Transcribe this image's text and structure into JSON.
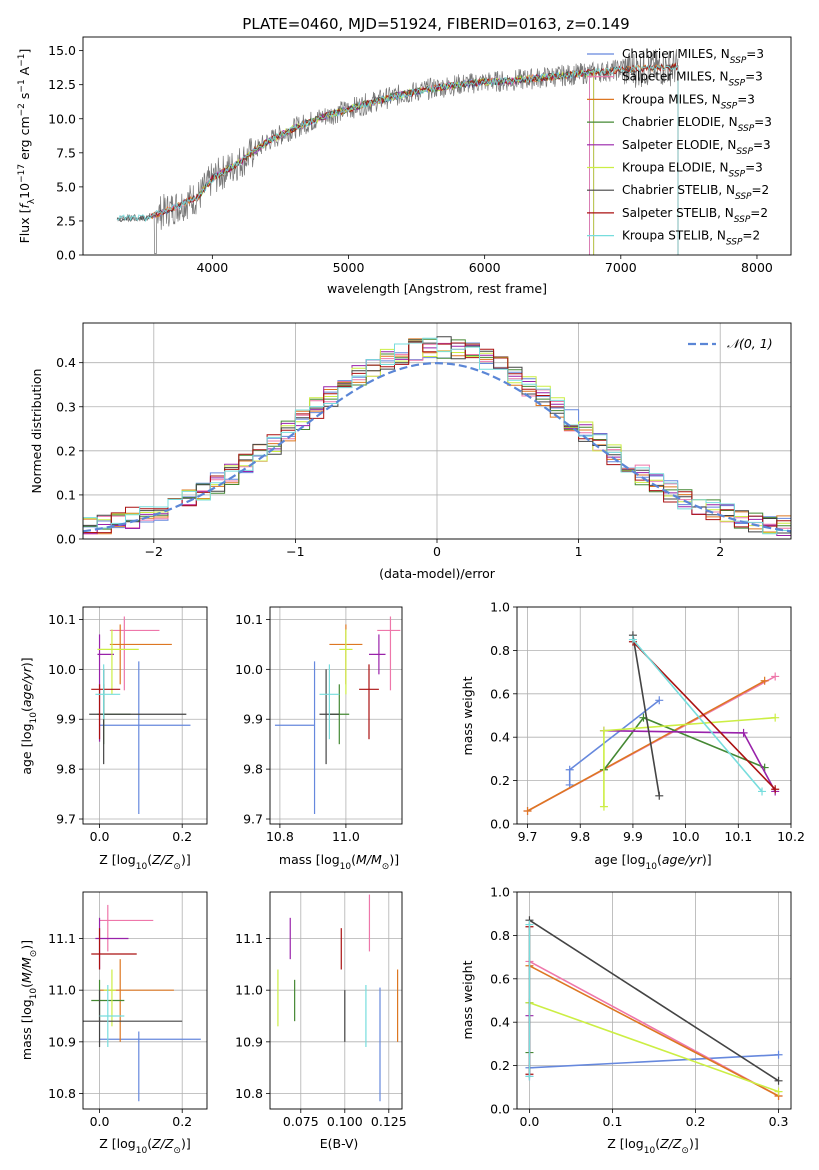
{
  "title": "PLATE=0460, MJD=51924, FIBERID=0163, z=0.149",
  "colors": {
    "Chabrier MILES": "#6688dd",
    "Salpeter MILES": "#ee77aa",
    "Kroupa MILES": "#dd7722",
    "Chabrier ELODIE": "#448833",
    "Salpeter ELODIE": "#9922aa",
    "Kroupa ELODIE": "#ccee44",
    "Chabrier STELIB": "#444444",
    "Salpeter STELIB": "#aa1111",
    "Kroupa STELIB": "#77dddd",
    "data": "#777777",
    "normal": "#5b86d6"
  },
  "chart_data": [
    {
      "type": "line",
      "id": "spectrum",
      "xlabel": "wavelength [Angstrom, rest frame]",
      "ylabel": "Flux [fλ10⁻¹⁷ erg cm⁻² s⁻¹ A⁻¹]",
      "xlim": [
        3050,
        8250
      ],
      "ylim": [
        0,
        16
      ],
      "xticks": [
        4000,
        5000,
        6000,
        7000,
        8000
      ],
      "yticks": [
        0.0,
        2.5,
        5.0,
        7.5,
        10.0,
        12.5,
        15.0
      ],
      "legend_position": "upper-right",
      "legend": [
        "Chabrier MILES, N_SSP=3",
        "Salpeter MILES, N_SSP=3",
        "Kroupa MILES, N_SSP=3",
        "Chabrier ELODIE, N_SSP=3",
        "Salpeter ELODIE, N_SSP=3",
        "Kroupa ELODIE, N_SSP=3",
        "Chabrier STELIB, N_SSP=2",
        "Salpeter STELIB, N_SSP=2",
        "Kroupa STELIB, N_SSP=2"
      ],
      "continuum": {
        "x": [
          3300,
          3500,
          3700,
          3900,
          4000,
          4200,
          4400,
          4600,
          4800,
          5000,
          5200,
          5400,
          5600,
          5800,
          6000,
          6200,
          6400,
          6600,
          6800,
          7000,
          7200,
          7400
        ],
        "y": [
          2.7,
          2.7,
          3.4,
          4.3,
          5.6,
          6.8,
          8.3,
          9.3,
          10.1,
          10.7,
          11.3,
          11.8,
          12.2,
          12.5,
          12.7,
          12.8,
          13.0,
          13.2,
          13.4,
          13.6,
          13.7,
          13.8
        ]
      },
      "model_ranges": [
        [
          3550,
          6770
        ],
        [
          3550,
          6770
        ],
        [
          3550,
          7420
        ],
        [
          3900,
          6800
        ],
        [
          3900,
          6800
        ],
        [
          3900,
          6800
        ],
        [
          3300,
          7420
        ],
        [
          3550,
          7420
        ],
        [
          3300,
          7420
        ]
      ]
    },
    {
      "type": "histogram",
      "id": "residuals",
      "xlabel": "(data-model)/error",
      "ylabel": "Normed distribution",
      "xlim": [
        -2.5,
        2.5
      ],
      "ylim": [
        0,
        0.49
      ],
      "xticks": [
        -2,
        -1,
        0,
        1,
        2
      ],
      "yticks": [
        0.0,
        0.1,
        0.2,
        0.3,
        0.4
      ],
      "grid": true,
      "legend": [
        "𝒩(0, 1)"
      ],
      "legend_position": "upper-right",
      "bin_width": 0.1,
      "reference_curve": "normal(0, 1)"
    },
    {
      "type": "scatter",
      "id": "age_vs_Z",
      "xlabel": "Z [log₁₀(Z/Z⊙)]",
      "ylabel": "age  [log₁₀(age/yr)]",
      "xlim": [
        -0.04,
        0.26
      ],
      "ylim": [
        9.69,
        10.125
      ],
      "xticks": [
        0.0,
        0.2
      ],
      "yticks": [
        9.7,
        9.8,
        9.9,
        10.0,
        10.1
      ],
      "grid": true,
      "points": [
        {
          "x": 0.095,
          "y": 9.888,
          "xerr": [
            0.095,
            0.125
          ],
          "yerr": [
            0.178,
            0.128
          ]
        },
        {
          "x": 0.06,
          "y": 10.078,
          "xerr": [
            0.035,
            0.085
          ],
          "yerr": [
            0.12,
            0.028
          ]
        },
        {
          "x": 0.05,
          "y": 10.05,
          "xerr": [
            0.025,
            0.125
          ],
          "yerr": [
            0.08,
            0.04
          ]
        },
        {
          "x": 0.01,
          "y": 9.91,
          "xerr": [
            0.015,
            0.065
          ],
          "yerr": [
            0.06,
            0.06
          ]
        },
        {
          "x": 0.0,
          "y": 10.03,
          "xerr": [
            0.005,
            0.035
          ],
          "yerr": [
            0.175,
            0.04
          ]
        },
        {
          "x": 0.03,
          "y": 10.04,
          "xerr": [
            0.035,
            0.065
          ],
          "yerr": [
            0.09,
            0.04
          ]
        },
        {
          "x": 0.01,
          "y": 9.91,
          "xerr": [
            0.035,
            0.2
          ],
          "yerr": [
            0.1,
            0.09
          ]
        },
        {
          "x": 0.0,
          "y": 9.96,
          "xerr": [
            0.02,
            0.05
          ],
          "yerr": [
            0.1,
            0.01
          ]
        },
        {
          "x": 0.01,
          "y": 9.95,
          "xerr": [
            0.02,
            0.04
          ],
          "yerr": [
            0.05,
            0.06
          ]
        }
      ]
    },
    {
      "type": "scatter",
      "id": "age_vs_mass",
      "xlabel": "mass [log₁₀(M/M⊙)]",
      "ylabel": "",
      "xlim": [
        10.77,
        11.17
      ],
      "ylim": [
        9.69,
        10.125
      ],
      "xticks": [
        10.8,
        11.0
      ],
      "yticks": [
        9.7,
        9.8,
        9.9,
        10.0,
        10.1
      ],
      "grid": true,
      "points": [
        {
          "x": 10.905,
          "y": 9.888,
          "xerr": [
            0.12,
            0.0
          ],
          "yerr": [
            0.178,
            0.128
          ]
        },
        {
          "x": 11.135,
          "y": 10.078,
          "xerr": [
            0.04,
            0.03
          ],
          "yerr": [
            0.12,
            0.028
          ]
        },
        {
          "x": 11.0,
          "y": 10.05,
          "xerr": [
            0.05,
            0.05
          ],
          "yerr": [
            0.08,
            0.04
          ]
        },
        {
          "x": 10.98,
          "y": 9.91,
          "xerr": [
            0.03,
            0.03
          ],
          "yerr": [
            0.06,
            0.06
          ]
        },
        {
          "x": 11.1,
          "y": 10.03,
          "xerr": [
            0.03,
            0.02
          ],
          "yerr": [
            0.04,
            0.04
          ]
        },
        {
          "x": 11.0,
          "y": 10.04,
          "xerr": [
            0.02,
            0.02
          ],
          "yerr": [
            0.09,
            0.04
          ]
        },
        {
          "x": 10.94,
          "y": 9.91,
          "xerr": [
            0.02,
            0.04
          ],
          "yerr": [
            0.1,
            0.09
          ]
        },
        {
          "x": 11.07,
          "y": 9.96,
          "xerr": [
            0.03,
            0.03
          ],
          "yerr": [
            0.1,
            0.05
          ]
        },
        {
          "x": 10.95,
          "y": 9.95,
          "xerr": [
            0.03,
            0.03
          ],
          "yerr": [
            0.09,
            0.06
          ]
        }
      ]
    },
    {
      "type": "line",
      "id": "weight_vs_age",
      "xlabel": "age  [log₁₀(age/yr)]",
      "ylabel": "mass weight",
      "xlim": [
        9.68,
        10.2
      ],
      "ylim": [
        0.0,
        1.0
      ],
      "xticks": [
        9.7,
        9.8,
        9.9,
        10.0,
        10.1,
        10.2
      ],
      "yticks": [
        0.0,
        0.2,
        0.4,
        0.6,
        0.8,
        1.0
      ],
      "grid": true,
      "series": [
        {
          "x": [
            9.78,
            9.78,
            9.95
          ],
          "y": [
            0.18,
            0.25,
            0.57
          ]
        },
        {
          "x": [
            9.7,
            10.17
          ],
          "y": [
            0.06,
            0.68
          ]
        },
        {
          "x": [
            9.7,
            10.15
          ],
          "y": [
            0.06,
            0.66
          ]
        },
        {
          "x": [
            9.845,
            9.92,
            10.15
          ],
          "y": [
            0.25,
            0.49,
            0.26
          ]
        },
        {
          "x": [
            9.845,
            10.11,
            10.17
          ],
          "y": [
            0.43,
            0.42,
            0.15
          ]
        },
        {
          "x": [
            9.845,
            9.845,
            10.17
          ],
          "y": [
            0.08,
            0.43,
            0.49
          ]
        },
        {
          "x": [
            9.9,
            9.95
          ],
          "y": [
            0.87,
            0.13
          ]
        },
        {
          "x": [
            9.9,
            10.17
          ],
          "y": [
            0.84,
            0.16
          ]
        },
        {
          "x": [
            9.9,
            10.145
          ],
          "y": [
            0.85,
            0.15
          ]
        }
      ]
    },
    {
      "type": "scatter",
      "id": "mass_vs_Z",
      "xlabel": "Z [log₁₀(Z/Z⊙)]",
      "ylabel": "mass [log₁₀(M/M⊙)]",
      "xlim": [
        -0.04,
        0.26
      ],
      "ylim": [
        10.77,
        11.19
      ],
      "xticks": [
        0.0,
        0.2
      ],
      "yticks": [
        10.8,
        10.9,
        11.0,
        11.1
      ],
      "grid": true,
      "points": [
        {
          "x": 0.095,
          "y": 10.905,
          "xerr": [
            0.095,
            0.15
          ],
          "yerr": [
            0.12,
            0.015
          ]
        },
        {
          "x": 0.02,
          "y": 11.135,
          "xerr": [
            0.02,
            0.11
          ],
          "yerr": [
            0.06,
            0.03
          ]
        },
        {
          "x": 0.05,
          "y": 11.0,
          "xerr": [
            0.05,
            0.13
          ],
          "yerr": [
            0.1,
            0.06
          ]
        },
        {
          "x": 0.0,
          "y": 10.98,
          "xerr": [
            0.02,
            0.06
          ],
          "yerr": [
            0.04,
            0.04
          ]
        },
        {
          "x": 0.0,
          "y": 11.1,
          "xerr": [
            0.01,
            0.07
          ],
          "yerr": [
            0.06,
            0.04
          ]
        },
        {
          "x": 0.03,
          "y": 11.0,
          "xerr": [
            0.02,
            0.01
          ],
          "yerr": [
            0.07,
            0.04
          ]
        },
        {
          "x": 0.0,
          "y": 10.94,
          "xerr": [
            0.04,
            0.2
          ],
          "yerr": [
            0.05,
            0.06
          ]
        },
        {
          "x": 0.0,
          "y": 11.07,
          "xerr": [
            0.02,
            0.09
          ],
          "yerr": [
            0.03,
            0.05
          ]
        },
        {
          "x": 0.02,
          "y": 10.95,
          "xerr": [
            0.02,
            0.04
          ],
          "yerr": [
            0.06,
            0.06
          ]
        }
      ]
    },
    {
      "type": "scatter",
      "id": "mass_vs_ebv",
      "xlabel": "E(B-V)",
      "ylabel": "",
      "xlim": [
        0.0575,
        0.1325
      ],
      "ylim": [
        10.77,
        11.19
      ],
      "xticks": [
        0.075,
        0.1,
        0.125
      ],
      "xticklabels": [
        "0.075",
        "0.100",
        "0.125"
      ],
      "yticks": [
        10.8,
        10.9,
        11.0,
        11.1
      ],
      "grid": true,
      "points": [
        {
          "x": 0.12,
          "y": 10.905,
          "xerr": [
            0,
            0
          ],
          "yerr": [
            0.12,
            0.1
          ]
        },
        {
          "x": 0.114,
          "y": 11.135,
          "xerr": [
            0,
            0
          ],
          "yerr": [
            0.06,
            0.05
          ]
        },
        {
          "x": 0.13,
          "y": 11.0,
          "xerr": [
            0,
            0
          ],
          "yerr": [
            0.1,
            0.04
          ]
        },
        {
          "x": 0.0715,
          "y": 10.98,
          "xerr": [
            0,
            0
          ],
          "yerr": [
            0.04,
            0.04
          ]
        },
        {
          "x": 0.069,
          "y": 11.1,
          "xerr": [
            0,
            0
          ],
          "yerr": [
            0.04,
            0.04
          ]
        },
        {
          "x": 0.062,
          "y": 11.0,
          "xerr": [
            0,
            0
          ],
          "yerr": [
            0.07,
            0.04
          ]
        },
        {
          "x": 0.1,
          "y": 10.94,
          "xerr": [
            0,
            0
          ],
          "yerr": [
            0.04,
            0.06
          ]
        },
        {
          "x": 0.098,
          "y": 11.07,
          "xerr": [
            0,
            0
          ],
          "yerr": [
            0.03,
            0.05
          ]
        },
        {
          "x": 0.112,
          "y": 10.95,
          "xerr": [
            0,
            0
          ],
          "yerr": [
            0.06,
            0.06
          ]
        }
      ]
    },
    {
      "type": "line",
      "id": "weight_vs_Z",
      "xlabel": "Z [log₁₀(Z/Z⊙)]",
      "ylabel": "mass weight",
      "xlim": [
        -0.015,
        0.315
      ],
      "ylim": [
        0.0,
        1.0
      ],
      "xticks": [
        0.0,
        0.1,
        0.2,
        0.3
      ],
      "yticks": [
        0.0,
        0.2,
        0.4,
        0.6,
        0.8,
        1.0
      ],
      "grid": true,
      "series": [
        {
          "x": [
            0.0,
            0.3
          ],
          "y": [
            0.19,
            0.25
          ]
        },
        {
          "x": [
            0.0,
            0.3
          ],
          "y": [
            0.68,
            0.06
          ]
        },
        {
          "x": [
            0.0,
            0.3
          ],
          "y": [
            0.66,
            0.06
          ]
        },
        {
          "x": [
            0.0,
            0.0
          ],
          "y": [
            0.26,
            0.49
          ]
        },
        {
          "x": [
            0.0,
            0.0
          ],
          "y": [
            0.15,
            0.43
          ]
        },
        {
          "x": [
            0.0,
            0.3
          ],
          "y": [
            0.49,
            0.08
          ]
        },
        {
          "x": [
            0.0,
            0.3
          ],
          "y": [
            0.87,
            0.13
          ]
        },
        {
          "x": [
            0.0,
            0.0
          ],
          "y": [
            0.16,
            0.84
          ]
        },
        {
          "x": [
            0.0,
            0.0
          ],
          "y": [
            0.15,
            0.85
          ]
        }
      ]
    }
  ]
}
